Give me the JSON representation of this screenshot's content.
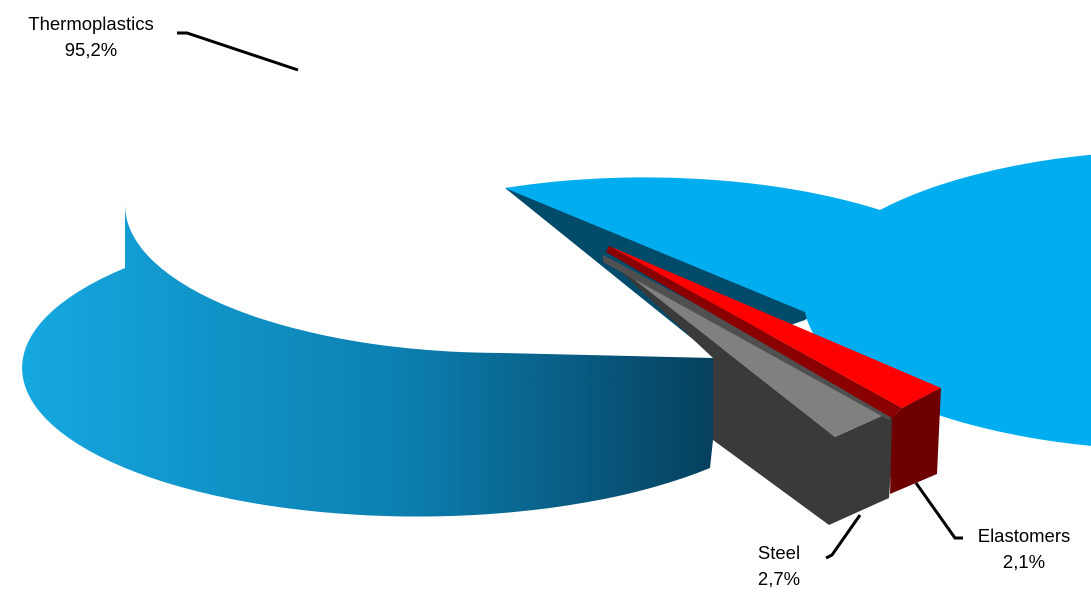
{
  "chart_data": {
    "type": "pie",
    "style": "3d-exploded",
    "slices": [
      {
        "label": "Thermoplastics",
        "value": 95.2,
        "value_text": "95,2%",
        "color": "#00AEEF",
        "side_color": "#0090C8",
        "exploded": false
      },
      {
        "label": "Steel",
        "value": 2.7,
        "value_text": "2,7%",
        "color": "#808080",
        "side_color": "#3A3A3A",
        "exploded": true
      },
      {
        "label": "Elastomers",
        "value": 2.1,
        "value_text": "2,1%",
        "color": "#FF0000",
        "side_color": "#6E0000",
        "exploded": true
      }
    ]
  }
}
